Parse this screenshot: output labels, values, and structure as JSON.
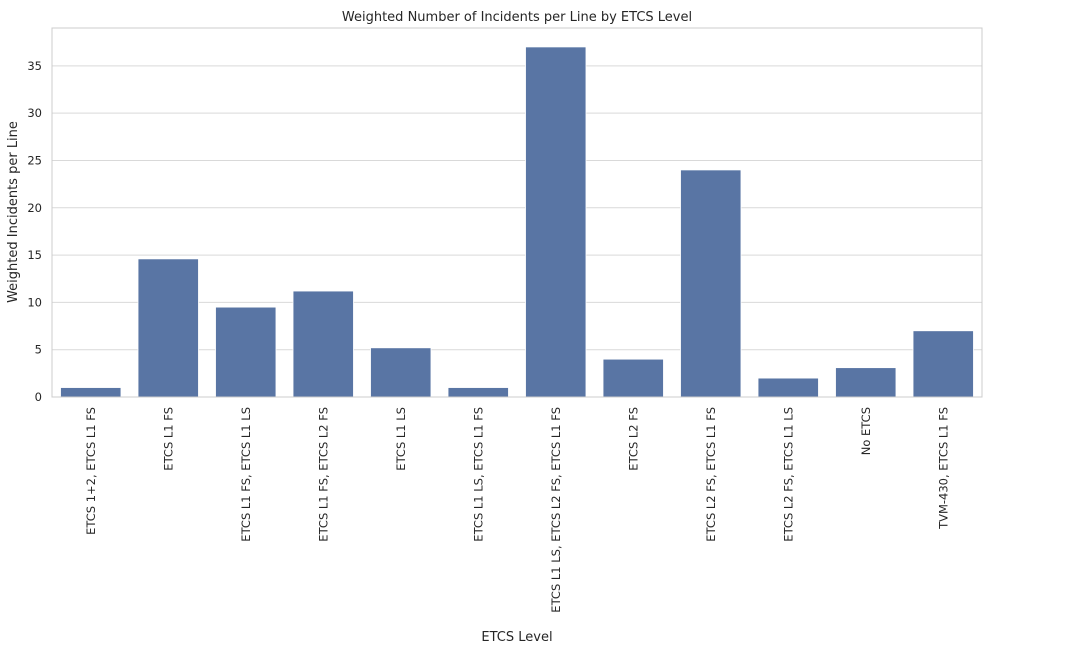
{
  "chart_data": {
    "type": "bar",
    "title": "Weighted Number of Incidents per Line by ETCS Level",
    "xlabel": "ETCS Level",
    "ylabel": "Weighted Incidents per Line",
    "ylim": [
      0,
      39
    ],
    "yticks": [
      0,
      5,
      10,
      15,
      20,
      25,
      30,
      35
    ],
    "grid": true,
    "bar_color": "#5975a4",
    "categories": [
      "ETCS 1+2, ETCS L1 FS",
      "ETCS L1 FS",
      "ETCS L1 FS, ETCS L1 LS",
      "ETCS L1 FS, ETCS L2 FS",
      "ETCS L1 LS",
      "ETCS L1 LS, ETCS L1 FS",
      "ETCS L1 LS, ETCS L2 FS, ETCS L1 FS",
      "ETCS L2 FS",
      "ETCS L2 FS, ETCS L1 FS",
      "ETCS L2 FS, ETCS L1 LS",
      "No ETCS",
      "TVM-430, ETCS L1 FS"
    ],
    "values": [
      1.0,
      14.6,
      9.5,
      11.2,
      5.2,
      1.0,
      37.0,
      4.0,
      24.0,
      2.0,
      3.1,
      7.0
    ]
  }
}
